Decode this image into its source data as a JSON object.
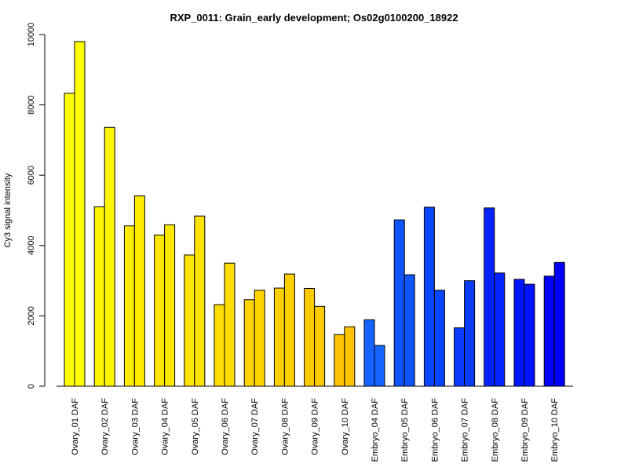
{
  "chart_data": {
    "type": "bar",
    "title": "RXP_0011: Grain_early development; Os02g0100200_18922",
    "ylabel": "Cy3 signal intensity",
    "xlabel": "",
    "ylim": [
      0,
      10000
    ],
    "yticks": [
      0,
      2000,
      4000,
      6000,
      8000,
      10000
    ],
    "grid": false,
    "categories": [
      "Ovary_01 DAF",
      "Ovary_02 DAF",
      "Ovary_03 DAF",
      "Ovary_04 DAF",
      "Ovary_05 DAF",
      "Ovary_06 DAF",
      "Ovary_07 DAF",
      "Ovary_08 DAF",
      "Ovary_09 DAF",
      "Ovary_10 DAF",
      "Embryo_04 DAF",
      "Embryo_05 DAF",
      "Embryo_06 DAF",
      "Embryo_07 DAF",
      "Embryo_08 DAF",
      "Embryo_09 DAF",
      "Embryo_10 DAF"
    ],
    "colors": [
      "#FFFF00",
      "#FFF500",
      "#FFEC00",
      "#FFE800",
      "#FFE400",
      "#FFDD00",
      "#FFD500",
      "#FFD000",
      "#FFCA00",
      "#FFC300",
      "#1464FF",
      "#0F55FF",
      "#0A46FF",
      "#0A3CFF",
      "#0523FF",
      "#0014FF",
      "#0000FF"
    ],
    "series": [
      {
        "values": [
          8330,
          5100,
          4560,
          4300,
          3730,
          2320,
          2460,
          2790,
          2780,
          1470,
          1890,
          4730,
          5090,
          1660,
          5070,
          3040,
          3130
        ]
      },
      {
        "values": [
          9800,
          7360,
          5410,
          4590,
          4840,
          3500,
          2730,
          3190,
          2270,
          1690,
          1160,
          3170,
          2730,
          3000,
          3220,
          2900,
          3520
        ]
      }
    ]
  }
}
